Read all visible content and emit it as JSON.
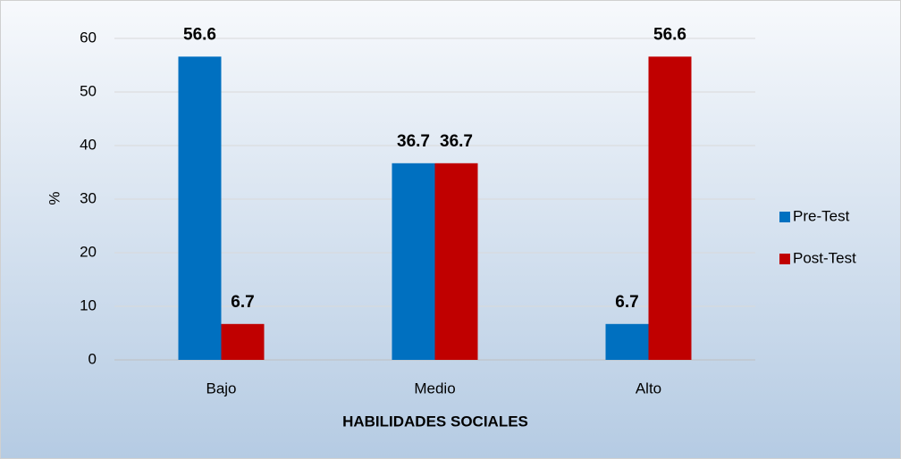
{
  "chart_data": {
    "type": "bar",
    "categories": [
      "Bajo",
      "Medio",
      "Alto"
    ],
    "series": [
      {
        "name": "Pre-Test",
        "color": "#0070c0",
        "values": [
          56.6,
          36.7,
          6.7
        ]
      },
      {
        "name": "Post-Test",
        "color": "#c00000",
        "values": [
          6.7,
          36.7,
          56.6
        ]
      }
    ],
    "ylim": [
      0,
      60
    ],
    "yticks": [
      0,
      10,
      20,
      30,
      40,
      50,
      60
    ],
    "grid": true,
    "y_label": "%",
    "x_label": "HABILIDADES SOCIALES",
    "legend": "right"
  }
}
